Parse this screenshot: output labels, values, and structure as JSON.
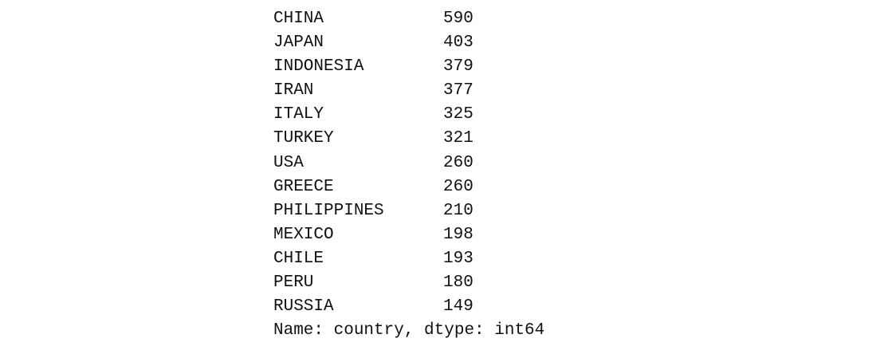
{
  "series_output": {
    "rows": [
      {
        "country": "CHINA",
        "count": "590"
      },
      {
        "country": "JAPAN",
        "count": "403"
      },
      {
        "country": "INDONESIA",
        "count": "379"
      },
      {
        "country": "IRAN",
        "count": "377"
      },
      {
        "country": "ITALY",
        "count": "325"
      },
      {
        "country": "TURKEY",
        "count": "321"
      },
      {
        "country": "USA",
        "count": "260"
      },
      {
        "country": "GREECE",
        "count": "260"
      },
      {
        "country": "PHILIPPINES",
        "count": "210"
      },
      {
        "country": "MEXICO",
        "count": "198"
      },
      {
        "country": "CHILE",
        "count": "193"
      },
      {
        "country": "PERU",
        "count": "180"
      },
      {
        "country": "RUSSIA",
        "count": "149"
      }
    ],
    "footer": "Name: country, dtype: int64"
  }
}
